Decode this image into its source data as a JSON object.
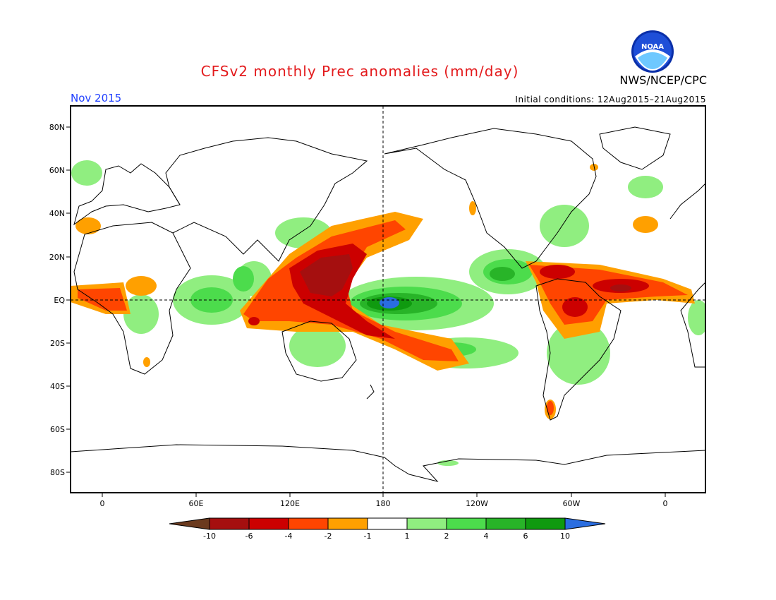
{
  "title": "CFSv2 monthly Prec anomalies (mm/day)",
  "organization": "NWS/NCEP/CPC",
  "logo_text": "NOAA",
  "valid_month": "Nov 2015",
  "initial_conditions": "Initial conditions: 12Aug2015–21Aug2015",
  "map": {
    "lat_ticks": [
      "80N",
      "60N",
      "40N",
      "20N",
      "EQ",
      "20S",
      "40S",
      "60S",
      "80S"
    ],
    "lon_ticks": [
      "0",
      "60E",
      "120E",
      "180",
      "120W",
      "60W",
      "0"
    ]
  },
  "colorbar": {
    "units": "mm/day",
    "labels": [
      "-10",
      "-6",
      "-4",
      "-2",
      "-1",
      "1",
      "2",
      "4",
      "6",
      "10"
    ],
    "colors": [
      "#6b3a1e",
      "#a50f0f",
      "#cc0000",
      "#ff4500",
      "#ffa000",
      "#ffffff",
      "#90ee80",
      "#4cdc4c",
      "#28b428",
      "#0f9a0f",
      "#2a6de0"
    ]
  }
}
